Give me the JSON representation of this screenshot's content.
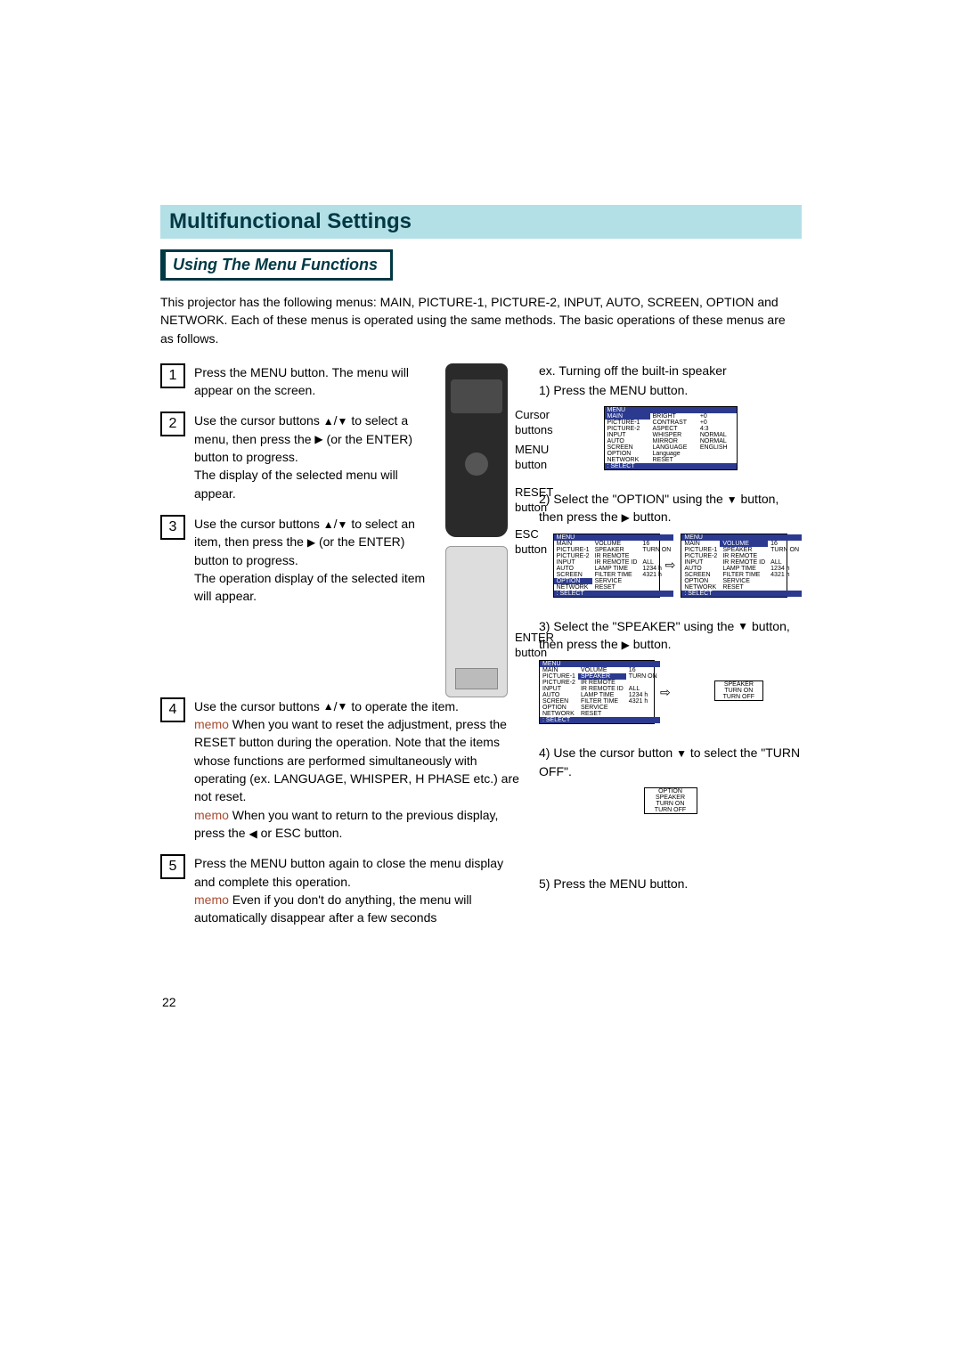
{
  "title": "Multifunctional Settings",
  "subtitle": "Using The Menu Functions",
  "intro": "This projector has the following menus: MAIN, PICTURE-1, PICTURE-2, INPUT, AUTO, SCREEN, OPTION and NETWORK. Each of these menus is operated using the same methods. The basic operations of these menus are as follows.",
  "steps": {
    "s1": {
      "num": "1",
      "body": "Press the MENU button. The menu will appear on the screen."
    },
    "s2": {
      "num": "2",
      "p1": "Use the cursor buttons",
      "p2": "to select a menu, then press the",
      "p3": "(or the ENTER) button to progress.",
      "p4": "The display of the selected menu will appear."
    },
    "s3": {
      "num": "3",
      "p1": "Use the cursor buttons",
      "p2": "to select an item, then press the",
      "p3": "(or the ENTER) button to progress.",
      "p4": "The operation display of the selected item will appear."
    },
    "s4": {
      "num": "4",
      "p1": "Use the cursor buttons",
      "p2": "to operate the item.",
      "memo1_label": "memo",
      "memo1": "When you want to reset the adjustment, press the RESET button during the operation. Note that the items whose functions are performed simultaneously with operating (ex. LANGUAGE, WHISPER, H PHASE etc.) are not reset.",
      "memo2_label": "memo",
      "memo2a": "When you want to return to the previous display, press the",
      "memo2b": "or ESC button."
    },
    "s5": {
      "num": "5",
      "p1": "Press the MENU button again to close the menu display and complete this operation.",
      "memo_label": "memo",
      "memo": "Even if you don't do anything, the menu will automatically disappear after a few seconds"
    }
  },
  "remote": {
    "cursor": "Cursor buttons",
    "menu": "MENU button",
    "reset": "RESET button",
    "esc": "ESC button",
    "enter": "ENTER button"
  },
  "example": {
    "title": "ex. Turning off the built-in speaker",
    "r1": "1) Press the MENU button.",
    "r2a": "2) Select the \"OPTION\" using the",
    "r2b": "button, then press the",
    "r2c": "button.",
    "r3a": "3) Select the \"SPEAKER\" using the",
    "r3b": "button, then press the",
    "r3c": "button.",
    "r4a": "4) Use the cursor button",
    "r4b": "to select the \"TURN OFF\".",
    "r5": "5) Press the MENU button."
  },
  "menu1": {
    "header": "MENU",
    "rows": [
      [
        "MAIN",
        "BRIGHT",
        "+0"
      ],
      [
        "PICTURE-1",
        "CONTRAST",
        "+0"
      ],
      [
        "PICTURE-2",
        "ASPECT",
        "4:3"
      ],
      [
        "INPUT",
        "WHISPER",
        "NORMAL"
      ],
      [
        "AUTO",
        "MIRROR",
        "NORMAL"
      ],
      [
        "SCREEN",
        "LANGUAGE",
        "ENGLISH"
      ],
      [
        "OPTION",
        "Language",
        ""
      ],
      [
        "NETWORK",
        "RESET",
        ""
      ]
    ],
    "footer": ": SELECT"
  },
  "menu2": {
    "rows": [
      [
        "MAIN",
        "VOLUME",
        "16"
      ],
      [
        "PICTURE-1",
        "SPEAKER",
        "TURN ON"
      ],
      [
        "PICTURE-2",
        "IR REMOTE",
        ""
      ],
      [
        "INPUT",
        "IR REMOTE ID",
        "ALL"
      ],
      [
        "AUTO",
        "LAMP TIME",
        "1234 h"
      ],
      [
        "SCREEN",
        "FILTER TIME",
        "4321 h"
      ],
      [
        "OPTION",
        "SERVICE",
        ""
      ],
      [
        "NETWORK",
        "RESET",
        ""
      ]
    ]
  },
  "menu3": {
    "rows": [
      [
        "MAIN",
        "VOLUME",
        "16"
      ],
      [
        "PICTURE-1",
        "SPEAKER",
        "TURN ON"
      ],
      [
        "PICTURE-2",
        "IR REMOTE",
        ""
      ],
      [
        "INPUT",
        "IR REMOTE ID",
        "ALL"
      ],
      [
        "AUTO",
        "LAMP TIME",
        "1234 h"
      ],
      [
        "SCREEN",
        "FILTER TIME",
        "4321 h"
      ],
      [
        "OPTION",
        "SERVICE",
        ""
      ],
      [
        "NETWORK",
        "RESET",
        ""
      ]
    ]
  },
  "speaker_popup": [
    "SPEAKER",
    "TURN ON",
    "TURN OFF"
  ],
  "option_popup": [
    "OPTION",
    "SPEAKER",
    "TURN ON",
    "TURN OFF"
  ],
  "page_number": "22"
}
